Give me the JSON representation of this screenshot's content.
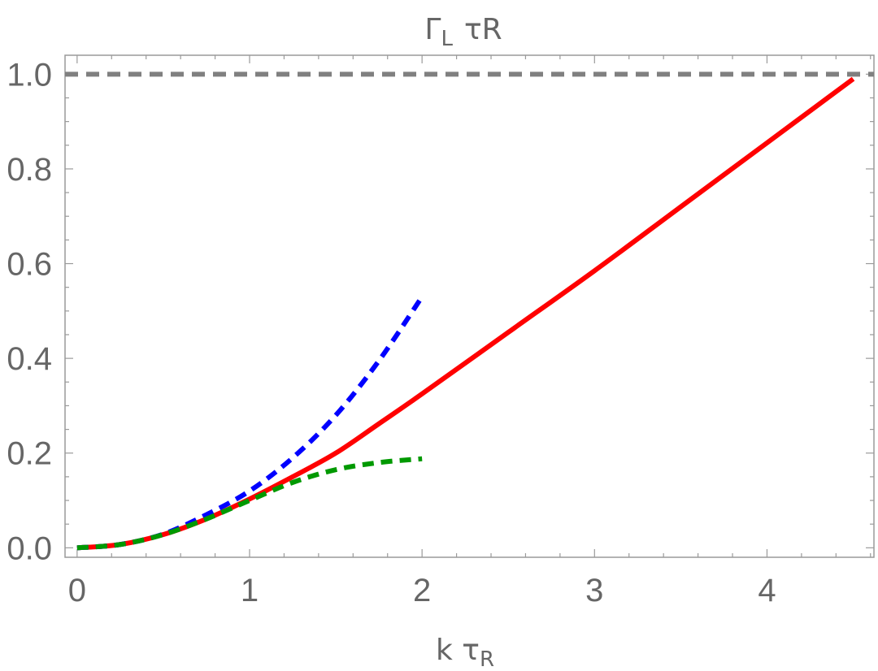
{
  "chart_data": {
    "type": "line",
    "title": "Γ_L τR",
    "title_main": "Γ",
    "title_sub": "L",
    "title_rest": "τR",
    "xlabel": "k τ_R",
    "xlabel_main": "k τ",
    "xlabel_sub": "R",
    "ylabel": "",
    "xlim": [
      -0.07,
      4.62
    ],
    "ylim": [
      -0.02,
      1.04
    ],
    "grid": false,
    "legend": "none",
    "x_ticks": [
      0,
      1,
      2,
      3,
      4
    ],
    "x_tick_labels": [
      "0",
      "1",
      "2",
      "3",
      "4"
    ],
    "y_ticks": [
      0.0,
      0.2,
      0.4,
      0.6,
      0.8,
      1.0
    ],
    "y_tick_labels": [
      "0.0",
      "0.2",
      "0.4",
      "0.6",
      "0.8",
      "1.0"
    ],
    "reference_line": {
      "y": 1.0,
      "color": "#808080",
      "style": "dashed"
    },
    "series": [
      {
        "color": "#ff0000",
        "style": "solid",
        "x": [
          0,
          0.25,
          0.5,
          0.75,
          1.0,
          1.25,
          1.5,
          1.75,
          2.0,
          2.5,
          3.0,
          3.5,
          4.0,
          4.5
        ],
        "y": [
          0,
          0.007,
          0.028,
          0.061,
          0.103,
          0.15,
          0.2,
          0.262,
          0.325,
          0.455,
          0.585,
          0.72,
          0.855,
          0.99
        ]
      },
      {
        "color": "#0000ff",
        "style": "dashed",
        "x": [
          0,
          0.25,
          0.5,
          0.75,
          1.0,
          1.25,
          1.5,
          1.75,
          2.0
        ],
        "y": [
          0,
          0.007,
          0.029,
          0.07,
          0.12,
          0.19,
          0.28,
          0.395,
          0.53
        ]
      },
      {
        "color": "#009900",
        "style": "dashed",
        "x": [
          0,
          0.25,
          0.5,
          0.75,
          1.0,
          1.25,
          1.5,
          1.75,
          2.0
        ],
        "y": [
          0,
          0.007,
          0.028,
          0.061,
          0.1,
          0.138,
          0.165,
          0.18,
          0.188
        ]
      }
    ]
  }
}
